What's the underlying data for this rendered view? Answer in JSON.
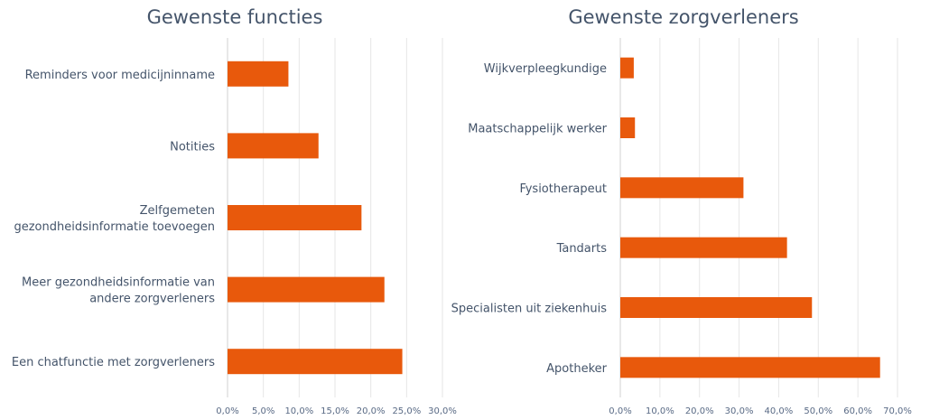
{
  "chart_data": [
    {
      "type": "bar",
      "orientation": "horizontal",
      "title": "Gewenste functies",
      "categories": [
        [
          "Reminders voor medicijninname"
        ],
        [
          "Notities"
        ],
        [
          "Zelfgemeten",
          "gezondheidsinformatie toevoegen"
        ],
        [
          "Meer gezondheidsinformatie van",
          "andere zorgverleners"
        ],
        [
          "Een chatfunctie met zorgverleners"
        ]
      ],
      "values": [
        8.5,
        12.7,
        18.7,
        21.9,
        24.4
      ],
      "xlim": [
        0,
        30
      ],
      "ticks": [
        "0,0%",
        "5,0%",
        "10,0%",
        "15,0%",
        "20,0%",
        "25,0%",
        "30,0%"
      ],
      "grid": true,
      "color": "#e8590c"
    },
    {
      "type": "bar",
      "orientation": "horizontal",
      "title": "Gewenste zorgverleners",
      "categories": [
        [
          "Wijkverpleegkundige"
        ],
        [
          "Maatschappelijk werker"
        ],
        [
          "Fysiotherapeut"
        ],
        [
          "Tandarts"
        ],
        [
          "Specialisten uit ziekenhuis"
        ],
        [
          "Apotheker"
        ]
      ],
      "values": [
        3.4,
        3.7,
        31.1,
        42.1,
        48.4,
        65.6
      ],
      "xlim": [
        0,
        70
      ],
      "ticks": [
        "0,0%",
        "10,0%",
        "20,0%",
        "30,0%",
        "40,0%",
        "50,0%",
        "60,0%",
        "70,0%"
      ],
      "grid": true,
      "color": "#e8590c"
    }
  ]
}
